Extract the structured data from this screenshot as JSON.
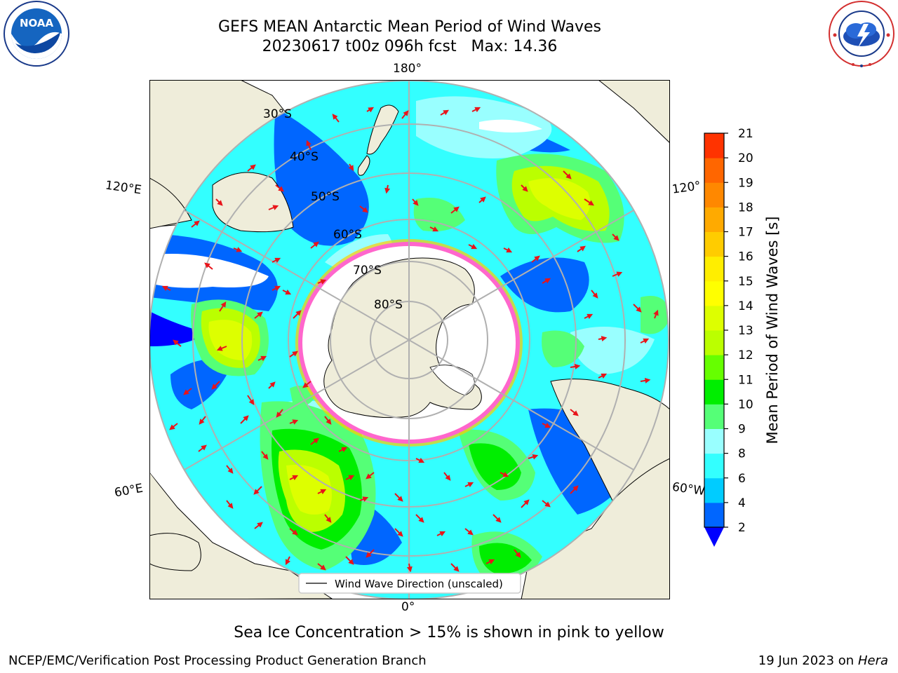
{
  "title": {
    "line1": "GEFS MEAN Antarctic Mean Period of Wind Waves",
    "line2": "20230617 t00z 096h fcst   Max: 14.36"
  },
  "logos": {
    "left": "noaa-logo",
    "right": "nws-logo"
  },
  "noaa": {
    "text": "NOAA"
  },
  "map": {
    "projection": "south-polar-stereographic",
    "lon_labels": {
      "top": "180°",
      "bottom": "0°",
      "left_upper": "120°E",
      "left_lower": "60°E",
      "right_upper": "120°",
      "right_lower": "60°W"
    },
    "lat_labels": [
      "30°S",
      "40°S",
      "50°S",
      "60°S",
      "70°S",
      "80°S"
    ],
    "legend_label": "Wind Wave Direction (unscaled)",
    "colors": {
      "land": "#efedda",
      "ice": "#ffffff",
      "ice_edge": "#ff66cc",
      "arrow": "#e8141a",
      "grid": "#b0b0b0"
    }
  },
  "colorbar": {
    "label": "Mean Period of Wind Waves [s]",
    "ticks": [
      "2",
      "4",
      "6",
      "8",
      "9",
      "10",
      "11",
      "12",
      "13",
      "14",
      "15",
      "16",
      "17",
      "18",
      "19",
      "20",
      "21"
    ],
    "colors": [
      "#0066ff",
      "#00ccff",
      "#33ffff",
      "#99ffff",
      "#55ff77",
      "#00ee00",
      "#66ff00",
      "#bbff00",
      "#ddff00",
      "#ffff00",
      "#ffee00",
      "#ffcc00",
      "#ffaa00",
      "#ff8800",
      "#ff6600",
      "#ff3300"
    ],
    "under_color": "#0000ff",
    "extend": "min"
  },
  "subtitle": "Sea Ice Concentration > 15% is shown in pink to yellow",
  "footer": {
    "left": "NCEP/EMC/Verification Post Processing Product Generation Branch",
    "right_date": "19 Jun 2023 on",
    "right_host": "Hera"
  }
}
